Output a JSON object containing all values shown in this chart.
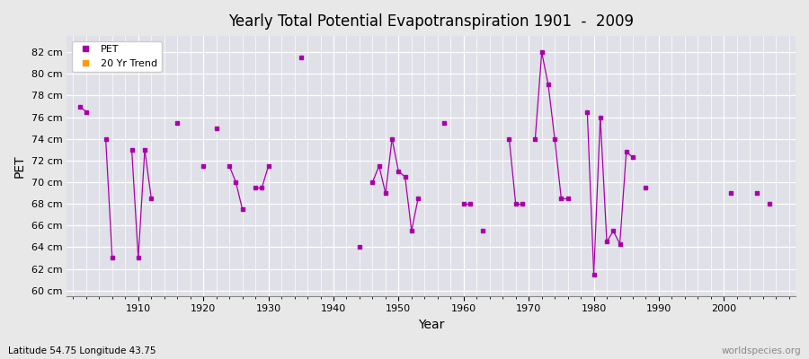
{
  "title": "Yearly Total Potential Evapotranspiration 1901  -  2009",
  "xlabel": "Year",
  "ylabel": "PET",
  "bottom_left_label": "Latitude 54.75 Longitude 43.75",
  "bottom_right_label": "worldspecies.org",
  "legend": [
    "PET",
    "20 Yr Trend"
  ],
  "pet_color": "#aa00aa",
  "trend_color": "#ff9900",
  "background_color": "#e8e8e8",
  "plot_bg_color": "#e0e0e8",
  "ylim": [
    59.5,
    83.5
  ],
  "yticks": [
    60,
    62,
    64,
    66,
    68,
    70,
    72,
    74,
    76,
    78,
    80,
    82
  ],
  "ytick_labels": [
    "60 cm",
    "62 cm",
    "64 cm",
    "66 cm",
    "68 cm",
    "70 cm",
    "72 cm",
    "74 cm",
    "76 cm",
    "78 cm",
    "80 cm",
    "82 cm"
  ],
  "xlim": [
    1899,
    2011
  ],
  "xtick_positions": [
    1910,
    1920,
    1930,
    1940,
    1950,
    1960,
    1970,
    1980,
    1990,
    2000
  ],
  "pet_data": {
    "1901": 77.0,
    "1902": 76.5,
    "1905": 74.0,
    "1906": 63.0,
    "1909": 73.0,
    "1910": 63.0,
    "1911": 73.0,
    "1912": 68.5,
    "1916": 75.5,
    "1920": 71.5,
    "1922": 75.0,
    "1924": 71.5,
    "1925": 70.0,
    "1926": 67.5,
    "1928": 69.5,
    "1929": 69.5,
    "1930": 71.5,
    "1935": 81.5,
    "1944": 64.0,
    "1946": 70.0,
    "1947": 71.5,
    "1948": 69.0,
    "1949": 74.0,
    "1950": 71.0,
    "1951": 70.5,
    "1952": 65.5,
    "1953": 68.5,
    "1957": 75.5,
    "1960": 68.0,
    "1961": 68.0,
    "1963": 65.5,
    "1967": 74.0,
    "1968": 68.0,
    "1969": 68.0,
    "1971": 74.0,
    "1972": 82.0,
    "1973": 79.0,
    "1974": 74.0,
    "1975": 68.5,
    "1976": 68.5,
    "1979": 76.5,
    "1980": 61.5,
    "1981": 76.0,
    "1982": 64.5,
    "1983": 65.5,
    "1984": 64.3,
    "1985": 72.8,
    "1986": 72.3,
    "1988": 69.5,
    "2001": 69.0,
    "2005": 69.0,
    "2007": 68.0
  }
}
